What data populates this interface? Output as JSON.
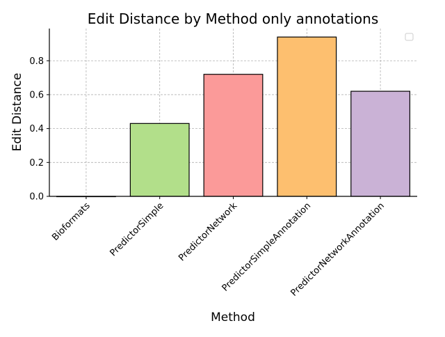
{
  "chart_data": {
    "type": "bar",
    "title": "Edit Distance by Method only annotations",
    "xlabel": "Method",
    "ylabel": "Edit Distance",
    "categories": [
      "Bioformats",
      "PredictorSimple",
      "PredictorNetwork",
      "PredictorSimpleAnnotation",
      "PredictorNetworkAnnotation"
    ],
    "values": [
      0.0,
      0.43,
      0.72,
      0.94,
      0.62
    ],
    "colors": [
      "#a6cee3",
      "#b2df8a",
      "#fb9a99",
      "#fdbf6f",
      "#cab2d6"
    ],
    "ylim": [
      0,
      0.99
    ],
    "yticks": [
      "0.0",
      "0.2",
      "0.4",
      "0.6",
      "0.8"
    ],
    "ytick_values": [
      0.0,
      0.2,
      0.4,
      0.6,
      0.8
    ],
    "grid": true,
    "legend": "top-right, empty"
  }
}
